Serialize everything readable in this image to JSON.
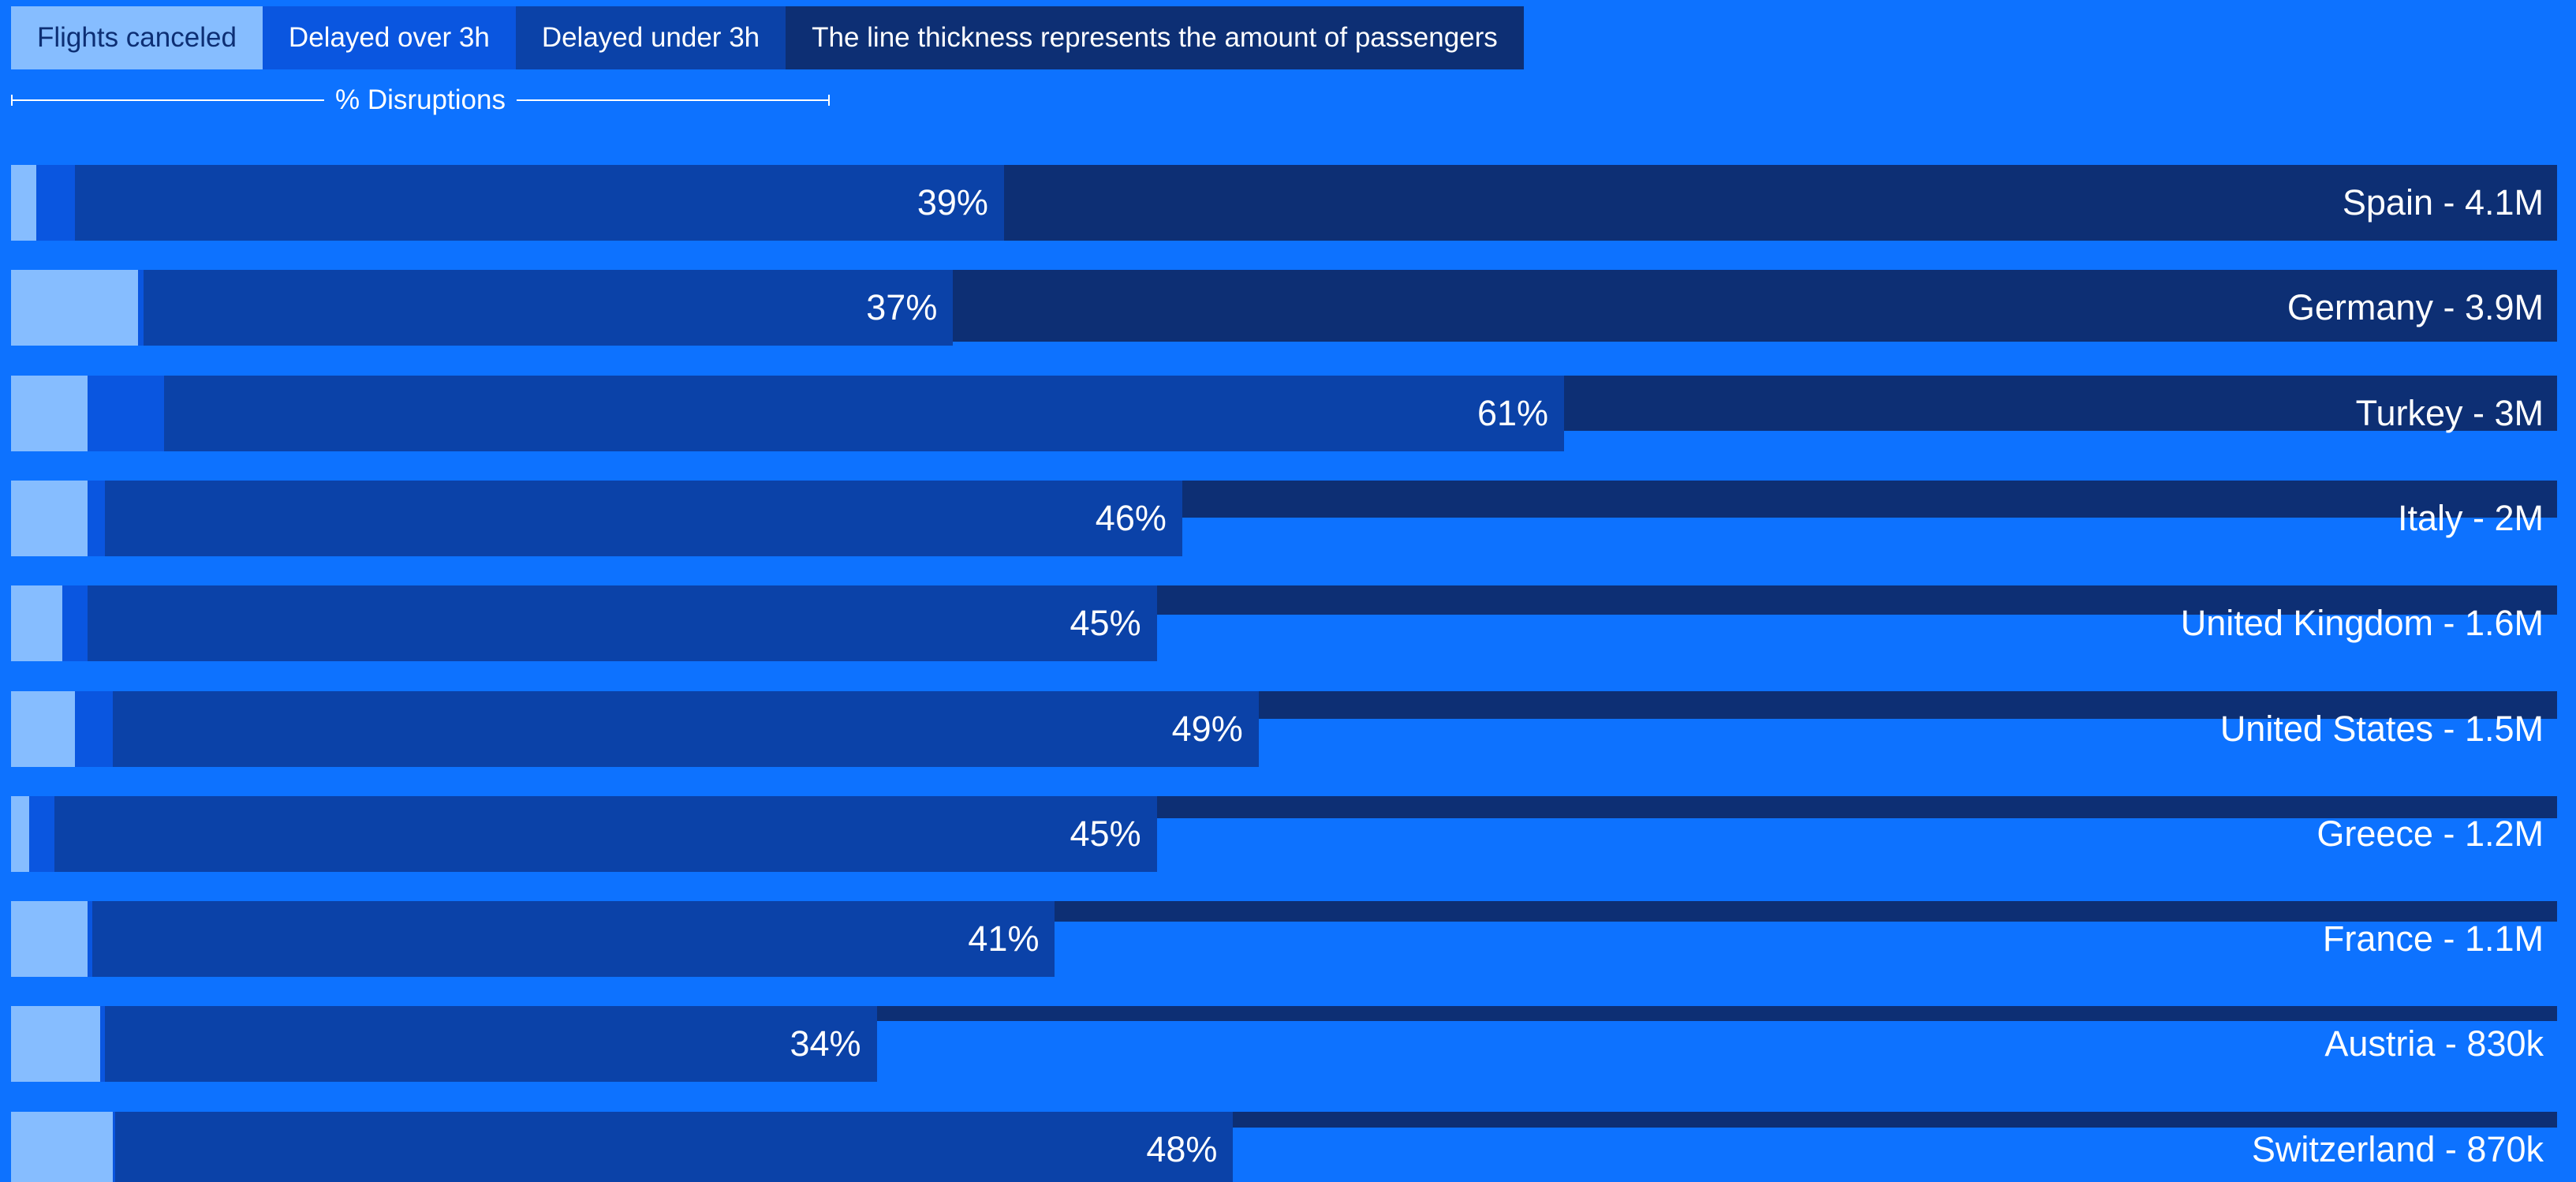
{
  "legend": {
    "canceled": "Flights canceled",
    "delayed_over": "Delayed over 3h",
    "delayed_under": "Delayed under 3h",
    "thickness_note": "The line thickness represents the amount of passengers"
  },
  "axis_caption": "% Disruptions",
  "colors": {
    "background": "#0d72ff",
    "canceled": "#86bdff",
    "delayed_over": "#0a56e0",
    "delayed_under": "#0b42a8",
    "passengers": "#0d2f74",
    "legend_canceled_text": "#0d2f74",
    "text": "#ffffff"
  },
  "chart_data": {
    "type": "bar",
    "orientation": "horizontal",
    "stacked": true,
    "xlim": [
      0,
      100
    ],
    "unit": "%",
    "categories": [
      "Spain",
      "Germany",
      "Turkey",
      "Italy",
      "United Kingdom",
      "United States",
      "Greece",
      "France",
      "Austria",
      "Switzerland"
    ],
    "passenger_labels": [
      "4.1M",
      "3.9M",
      "3M",
      "2M",
      "1.6M",
      "1.5M",
      "1.2M",
      "1.1M",
      "830k",
      "870k"
    ],
    "passengers_millions": [
      4.1,
      3.9,
      3.0,
      2.0,
      1.6,
      1.5,
      1.2,
      1.1,
      0.83,
      0.87
    ],
    "total_labels": [
      "39%",
      "37%",
      "61%",
      "46%",
      "45%",
      "49%",
      "45%",
      "41%",
      "34%",
      "48%"
    ],
    "totals": [
      39,
      37,
      61,
      46,
      45,
      49,
      45,
      41,
      34,
      48
    ],
    "series": [
      {
        "name": "Flights canceled",
        "values": [
          1,
          5,
          3,
          3,
          2,
          2.5,
          0.7,
          3,
          3.5,
          4
        ]
      },
      {
        "name": "Delayed over 3h",
        "values": [
          1.5,
          0.2,
          3,
          0.7,
          1,
          1.5,
          1,
          0.2,
          0.2,
          0.1
        ]
      },
      {
        "name": "Delayed under 3h",
        "values": [
          36.5,
          31.8,
          55,
          42.3,
          42,
          45,
          43.3,
          37.8,
          30.3,
          43.9
        ]
      }
    ]
  }
}
